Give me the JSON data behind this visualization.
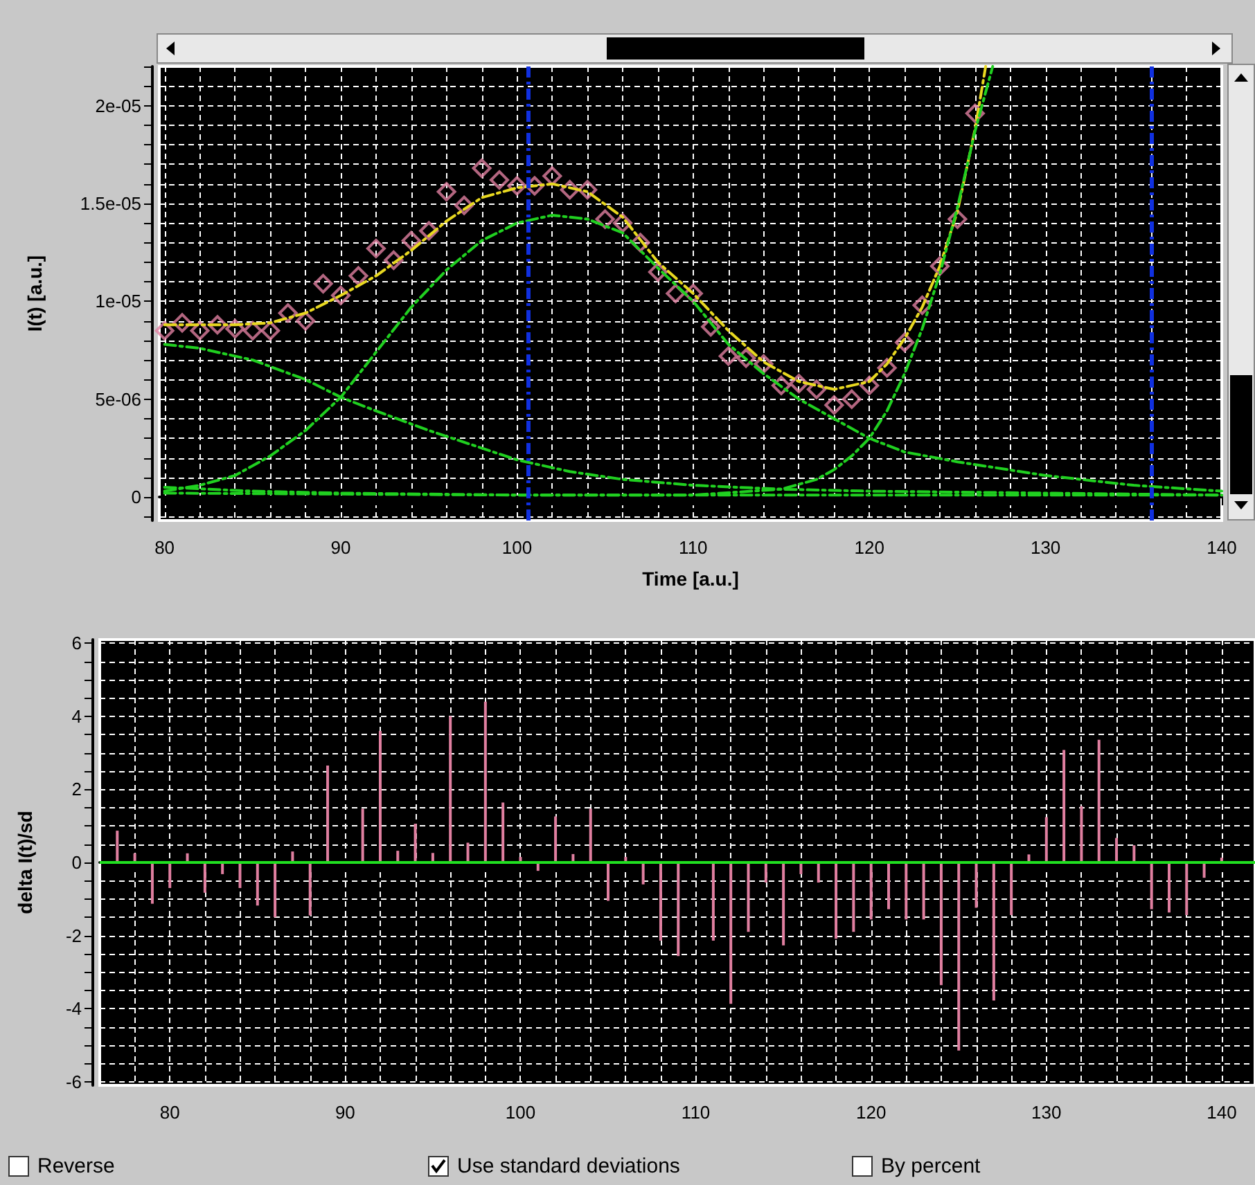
{
  "chart_data": [
    {
      "type": "line",
      "xlabel": "Time [a.u.]",
      "ylabel": "I(t) [a.u.]",
      "xlim": [
        79.7,
        140
      ],
      "ylim": [
        -1.2e-06,
        2.2e-05
      ],
      "xticks": [
        80,
        {
          "value": 82,
          "label": null
        },
        {
          "value": 84,
          "label": null
        },
        {
          "value": 86,
          "label": null
        },
        {
          "value": 88,
          "label": null
        },
        90,
        {
          "value": 92,
          "label": null
        },
        {
          "value": 94,
          "label": null
        },
        {
          "value": 96,
          "label": null
        },
        {
          "value": 98,
          "label": null
        },
        100,
        {
          "value": 102,
          "label": null
        },
        {
          "value": 104,
          "label": null
        },
        {
          "value": 106,
          "label": null
        },
        {
          "value": 108,
          "label": null
        },
        110,
        {
          "value": 112,
          "label": null
        },
        {
          "value": 114,
          "label": null
        },
        {
          "value": 116,
          "label": null
        },
        {
          "value": 118,
          "label": null
        },
        120,
        {
          "value": 122,
          "label": null
        },
        {
          "value": 124,
          "label": null
        },
        {
          "value": 126,
          "label": null
        },
        {
          "value": 128,
          "label": null
        },
        130,
        {
          "value": 132,
          "label": null
        },
        {
          "value": 134,
          "label": null
        },
        {
          "value": 136,
          "label": null
        },
        {
          "value": 138,
          "label": null
        },
        140
      ],
      "yticks": [
        {
          "value": -1e-06,
          "label": null
        },
        0,
        {
          "value": 1e-06,
          "label": null
        },
        {
          "value": 2e-06,
          "label": null
        },
        {
          "value": 3e-06,
          "label": null
        },
        {
          "value": 4e-06,
          "label": null
        },
        {
          "value": 5e-06,
          "label": "5e-06"
        },
        {
          "value": 6e-06,
          "label": null
        },
        {
          "value": 7e-06,
          "label": null
        },
        {
          "value": 8e-06,
          "label": null
        },
        {
          "value": 9e-06,
          "label": null
        },
        {
          "value": 1e-05,
          "label": "1e-05"
        },
        {
          "value": 1.1e-05,
          "label": null
        },
        {
          "value": 1.2e-05,
          "label": null
        },
        {
          "value": 1.3e-05,
          "label": null
        },
        {
          "value": 1.4e-05,
          "label": null
        },
        {
          "value": 1.5e-05,
          "label": "1.5e-05"
        },
        {
          "value": 1.6e-05,
          "label": null
        },
        {
          "value": 1.7e-05,
          "label": null
        },
        {
          "value": 1.8e-05,
          "label": null
        },
        {
          "value": 1.9e-05,
          "label": null
        },
        {
          "value": 2e-05,
          "label": "2e-05"
        },
        {
          "value": 2.1e-05,
          "label": null
        },
        {
          "value": 2.2e-05,
          "label": null
        }
      ],
      "grid": true,
      "line_style": "dashed",
      "ref_lines": [
        {
          "axis": "x",
          "value": 100.65,
          "color": "#1030e0",
          "line_style": "dashed"
        },
        {
          "axis": "x",
          "value": 136,
          "color": "#1030e0",
          "line_style": "dashed"
        }
      ],
      "series": [
        {
          "type": "scatter",
          "marker": "diamond",
          "color": "#e07fa0",
          "x": [
            80,
            81,
            82,
            83,
            84,
            85,
            86,
            87,
            88,
            89,
            90,
            91,
            92,
            93,
            94,
            95,
            96,
            97,
            98,
            99,
            100,
            101,
            102,
            103,
            104,
            105,
            106,
            107,
            108,
            109,
            110,
            111,
            112,
            113,
            114,
            115,
            116,
            117,
            118,
            119,
            120,
            121,
            122,
            123,
            124,
            125,
            126
          ],
          "values": [
            8.5e-06,
            8.9e-06,
            8.5e-06,
            8.8e-06,
            8.6e-06,
            8.5e-06,
            8.5e-06,
            9.4e-06,
            9e-06,
            1.09e-05,
            1.03e-05,
            1.13e-05,
            1.27e-05,
            1.21e-05,
            1.31e-05,
            1.36e-05,
            1.56e-05,
            1.49e-05,
            1.68e-05,
            1.62e-05,
            1.59e-05,
            1.59e-05,
            1.64e-05,
            1.57e-05,
            1.57e-05,
            1.42e-05,
            1.4e-05,
            1.3e-05,
            1.15e-05,
            1.04e-05,
            1.04e-05,
            8.7e-06,
            7.2e-06,
            7.1e-06,
            6.8e-06,
            5.7e-06,
            5.8e-06,
            5.5e-06,
            4.7e-06,
            5e-06,
            5.7e-06,
            6.6e-06,
            7.9e-06,
            9.8e-06,
            1.18e-05,
            1.42e-05,
            1.96e-05
          ]
        },
        {
          "color": "#e8d820",
          "x": [
            80,
            84,
            86,
            88,
            90,
            92,
            94,
            96,
            98,
            100,
            102,
            104,
            106,
            108,
            110,
            112,
            114,
            116,
            118,
            120,
            121,
            122,
            123,
            124,
            125,
            126,
            126.6
          ],
          "values": [
            8.8e-06,
            8.8e-06,
            8.9e-06,
            9.4e-06,
            1.03e-05,
            1.13e-05,
            1.26e-05,
            1.41e-05,
            1.53e-05,
            1.58e-05,
            1.6e-05,
            1.56e-05,
            1.43e-05,
            1.2e-05,
            1.04e-05,
            8.5e-06,
            6.9e-06,
            5.9e-06,
            5.5e-06,
            5.9e-06,
            6.8e-06,
            8.1e-06,
            9.7e-06,
            1.18e-05,
            1.46e-05,
            1.88e-05,
            2.2e-05
          ]
        },
        {
          "color": "#20d020",
          "x": [
            80,
            82,
            84,
            86,
            88,
            90,
            92,
            94,
            96,
            98,
            100,
            102,
            104,
            106,
            108,
            110,
            112,
            114,
            116,
            118,
            120,
            122,
            125,
            130,
            135,
            140
          ],
          "values": [
            3e-07,
            6e-07,
            1.1e-06,
            2.1e-06,
            3.4e-06,
            5.1e-06,
            7.4e-06,
            9.7e-06,
            1.16e-05,
            1.31e-05,
            1.4e-05,
            1.44e-05,
            1.42e-05,
            1.35e-05,
            1.17e-05,
            1e-05,
            7.8e-06,
            6.3e-06,
            5e-06,
            4e-06,
            3e-06,
            2.3e-06,
            1.8e-06,
            1.1e-06,
            6e-07,
            3e-07
          ]
        },
        {
          "color": "#20d020",
          "x": [
            80,
            82,
            85,
            88,
            90,
            92,
            95,
            98,
            100,
            103,
            106,
            110,
            115,
            120,
            130,
            140
          ],
          "values": [
            7.8e-06,
            7.6e-06,
            7e-06,
            6e-06,
            5.1e-06,
            4.4e-06,
            3.4e-06,
            2.5e-06,
            1.9e-06,
            1.3e-06,
            9e-07,
            6e-07,
            4e-07,
            3e-07,
            2e-07,
            1e-07
          ]
        },
        {
          "color": "#20d020",
          "x": [
            80,
            85,
            90,
            100,
            110,
            115,
            117,
            118,
            119,
            120,
            121,
            122,
            123,
            124,
            125,
            126,
            127
          ],
          "values": [
            5e-07,
            3e-07,
            2e-07,
            1e-07,
            1e-07,
            4e-07,
            9e-07,
            1.4e-06,
            2.1e-06,
            3e-06,
            4.4e-06,
            6.3e-06,
            8.6e-06,
            1.14e-05,
            1.48e-05,
            1.87e-05,
            2.2e-05
          ]
        },
        {
          "color": "#20d020",
          "x": [
            80,
            100,
            140
          ],
          "values": [
            2e-07,
            1e-07,
            1e-07
          ]
        }
      ]
    },
    {
      "type": "bar",
      "ylabel": "delta I(t)/sd",
      "xlim": [
        76,
        141.9
      ],
      "ylim": [
        -6.1,
        6.1
      ],
      "xticks": [
        {
          "value": 78,
          "label": null
        },
        80,
        {
          "value": 82,
          "label": null
        },
        {
          "value": 84,
          "label": null
        },
        {
          "value": 86,
          "label": null
        },
        {
          "value": 88,
          "label": null
        },
        90,
        {
          "value": 92,
          "label": null
        },
        {
          "value": 94,
          "label": null
        },
        {
          "value": 96,
          "label": null
        },
        {
          "value": 98,
          "label": null
        },
        100,
        {
          "value": 102,
          "label": null
        },
        {
          "value": 104,
          "label": null
        },
        {
          "value": 106,
          "label": null
        },
        {
          "value": 108,
          "label": null
        },
        110,
        {
          "value": 112,
          "label": null
        },
        {
          "value": 114,
          "label": null
        },
        {
          "value": 116,
          "label": null
        },
        {
          "value": 118,
          "label": null
        },
        120,
        {
          "value": 122,
          "label": null
        },
        {
          "value": 124,
          "label": null
        },
        {
          "value": 126,
          "label": null
        },
        {
          "value": 128,
          "label": null
        },
        130,
        {
          "value": 132,
          "label": null
        },
        {
          "value": 134,
          "label": null
        },
        {
          "value": 136,
          "label": null
        },
        {
          "value": 138,
          "label": null
        },
        140
      ],
      "yticks": [
        -6,
        {
          "value": -5.5,
          "label": null
        },
        {
          "value": -5,
          "label": null
        },
        {
          "value": -4.5,
          "label": null
        },
        -4,
        {
          "value": -3.5,
          "label": null
        },
        {
          "value": -3,
          "label": null
        },
        {
          "value": -2.5,
          "label": null
        },
        -2,
        {
          "value": -1.5,
          "label": null
        },
        {
          "value": -1,
          "label": null
        },
        {
          "value": -0.5,
          "label": null
        },
        0,
        {
          "value": 0.5,
          "label": null
        },
        {
          "value": 1,
          "label": null
        },
        {
          "value": 1.5,
          "label": null
        },
        2,
        {
          "value": 2.5,
          "label": null
        },
        {
          "value": 3,
          "label": null
        },
        {
          "value": 3.5,
          "label": null
        },
        4,
        {
          "value": 4.5,
          "label": null
        },
        {
          "value": 5,
          "label": null
        },
        {
          "value": 5.5,
          "label": null
        },
        6
      ],
      "grid": true,
      "ref_lines": [
        {
          "axis": "y",
          "value": 0,
          "color": "#20e020"
        }
      ],
      "annotations": [
        "Reverse",
        "Use standard deviations",
        "By percent"
      ],
      "x": [
        77,
        78,
        79,
        80,
        81,
        82,
        83,
        84,
        85,
        86,
        87,
        88,
        89,
        90,
        91,
        92,
        93,
        94,
        95,
        96,
        97,
        98,
        99,
        100,
        101,
        102,
        103,
        104,
        105,
        106,
        107,
        108,
        109,
        110,
        111,
        112,
        113,
        114,
        115,
        116,
        117,
        118,
        119,
        120,
        121,
        122,
        123,
        124,
        125,
        126,
        127,
        128,
        129,
        130,
        131,
        132,
        133,
        134,
        135,
        136,
        137,
        138,
        139,
        140
      ],
      "series": [
        {
          "color": "#e07fa0",
          "values": [
            0.87,
            0.25,
            -1.13,
            -0.7,
            0.25,
            -0.83,
            -0.32,
            -0.7,
            -1.18,
            -1.5,
            0.3,
            -1.45,
            2.65,
            0,
            1.47,
            3.6,
            0.32,
            1.06,
            0.26,
            4.0,
            0.54,
            4.4,
            1.64,
            0.15,
            -0.23,
            1.26,
            0.23,
            1.47,
            -1.05,
            0.15,
            -0.6,
            -2.14,
            -2.56,
            0,
            -2.14,
            -3.87,
            -1.9,
            -0.55,
            -2.27,
            -0.32,
            -0.55,
            -2.09,
            -1.9,
            -1.56,
            -1.28,
            -1.56,
            -1.56,
            -3.36,
            -5.15,
            -1.24,
            -3.78,
            -1.44,
            0.22,
            1.24,
            3.08,
            1.54,
            3.36,
            0.67,
            0.47,
            -1.28,
            -1.37,
            -1.44,
            -0.42,
            0.13
          ]
        }
      ]
    }
  ]
}
